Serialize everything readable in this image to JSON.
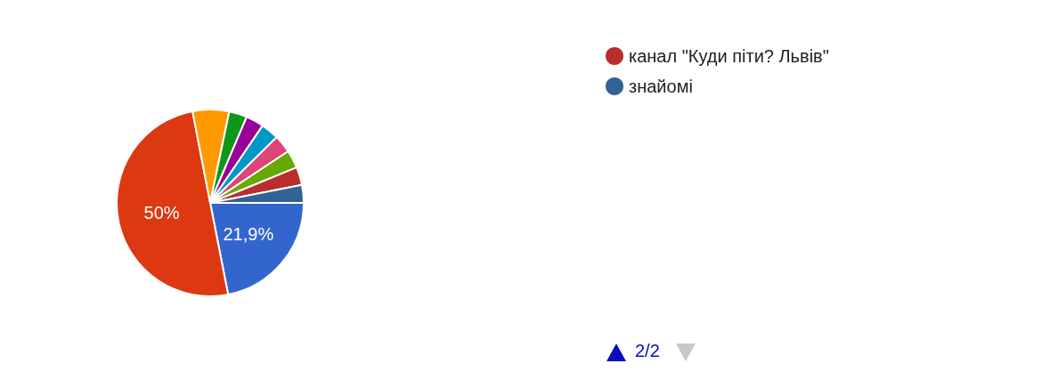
{
  "chart_data": {
    "type": "pie",
    "categories": [
      null,
      null,
      null,
      null,
      null,
      null,
      null,
      null,
      "канал \"Куди піти? Львів\"",
      "знайомі"
    ],
    "values": [
      21.9,
      50,
      6.3,
      3.1,
      3.1,
      3.1,
      3.1,
      3.1,
      3.1,
      3.1
    ],
    "colors": [
      "#3366cc",
      "#dc3912",
      "#ff9900",
      "#109618",
      "#990099",
      "#0099c6",
      "#dd4477",
      "#66aa00",
      "#b82e2e",
      "#316395"
    ],
    "value_labels": [
      "21,9%",
      "50%",
      null,
      null,
      null,
      null,
      null,
      null,
      null,
      null
    ],
    "legend": "top right",
    "annotations": [
      "2/2"
    ]
  }
}
